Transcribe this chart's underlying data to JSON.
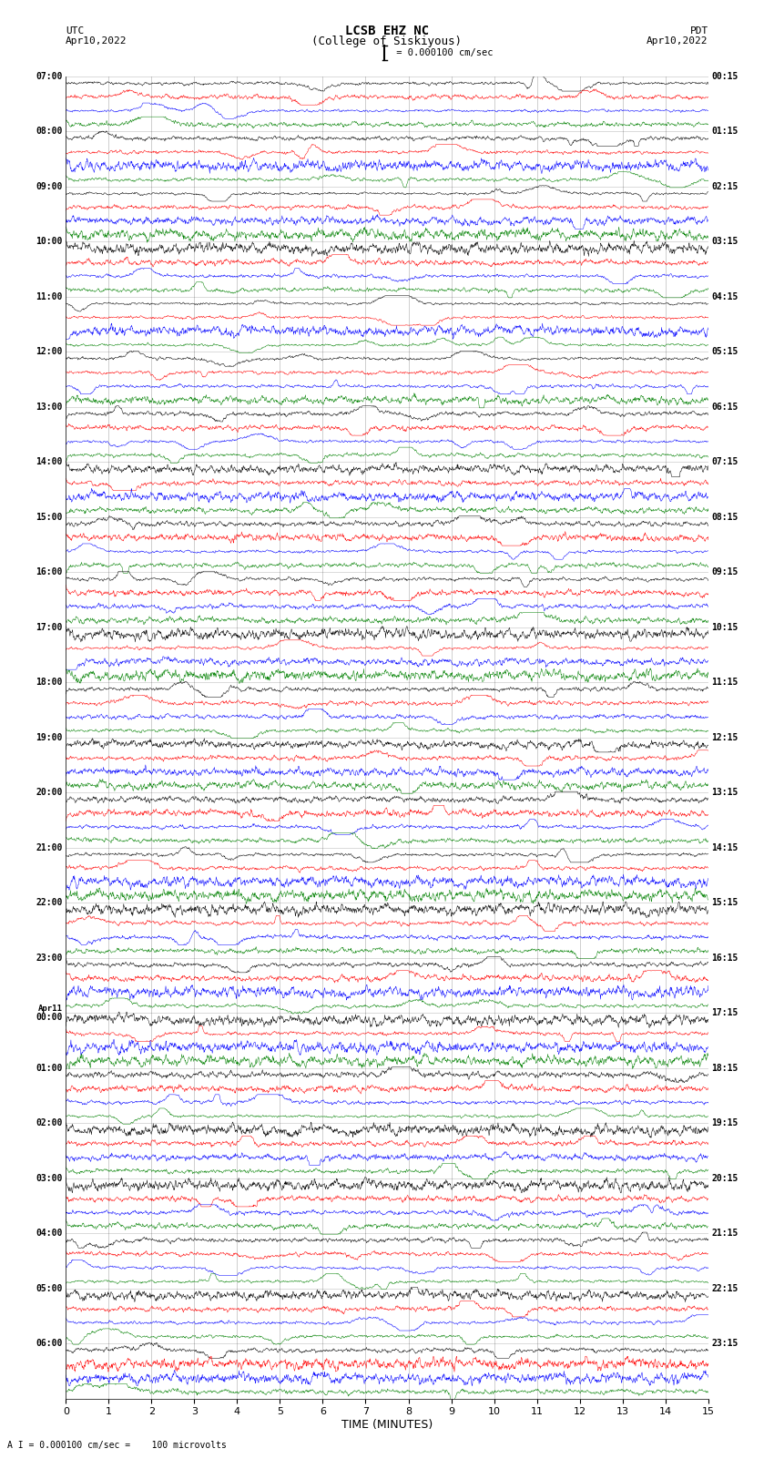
{
  "title_line1": "LCSB EHZ NC",
  "title_line2": "(College of Siskiyous)",
  "scale_label": " = 0.000100 cm/sec",
  "bottom_label": "A I = 0.000100 cm/sec =    100 microvolts",
  "xlabel": "TIME (MINUTES)",
  "left_header_line1": "UTC",
  "left_header_line2": "Apr10,2022",
  "right_header_line1": "PDT",
  "right_header_line2": "Apr10,2022",
  "left_times": [
    "07:00",
    "08:00",
    "09:00",
    "10:00",
    "11:00",
    "12:00",
    "13:00",
    "14:00",
    "15:00",
    "16:00",
    "17:00",
    "18:00",
    "19:00",
    "20:00",
    "21:00",
    "22:00",
    "23:00",
    "Apr11",
    "00:00",
    "01:00",
    "02:00",
    "03:00",
    "04:00",
    "05:00",
    "06:00"
  ],
  "left_times_special": [
    17
  ],
  "right_times": [
    "00:15",
    "01:15",
    "02:15",
    "03:15",
    "04:15",
    "05:15",
    "06:15",
    "07:15",
    "08:15",
    "09:15",
    "10:15",
    "11:15",
    "12:15",
    "13:15",
    "14:15",
    "15:15",
    "16:15",
    "17:15",
    "18:15",
    "19:15",
    "20:15",
    "21:15",
    "22:15",
    "23:15"
  ],
  "num_hours": 24,
  "traces_per_hour": 4,
  "trace_color_order": [
    "black",
    "red",
    "blue",
    "green"
  ],
  "bg_color": "white",
  "grid_color": "#888888",
  "figsize": [
    8.5,
    16.13
  ],
  "dpi": 100,
  "xlim": [
    0,
    15
  ],
  "xticks": [
    0,
    1,
    2,
    3,
    4,
    5,
    6,
    7,
    8,
    9,
    10,
    11,
    12,
    13,
    14,
    15
  ]
}
